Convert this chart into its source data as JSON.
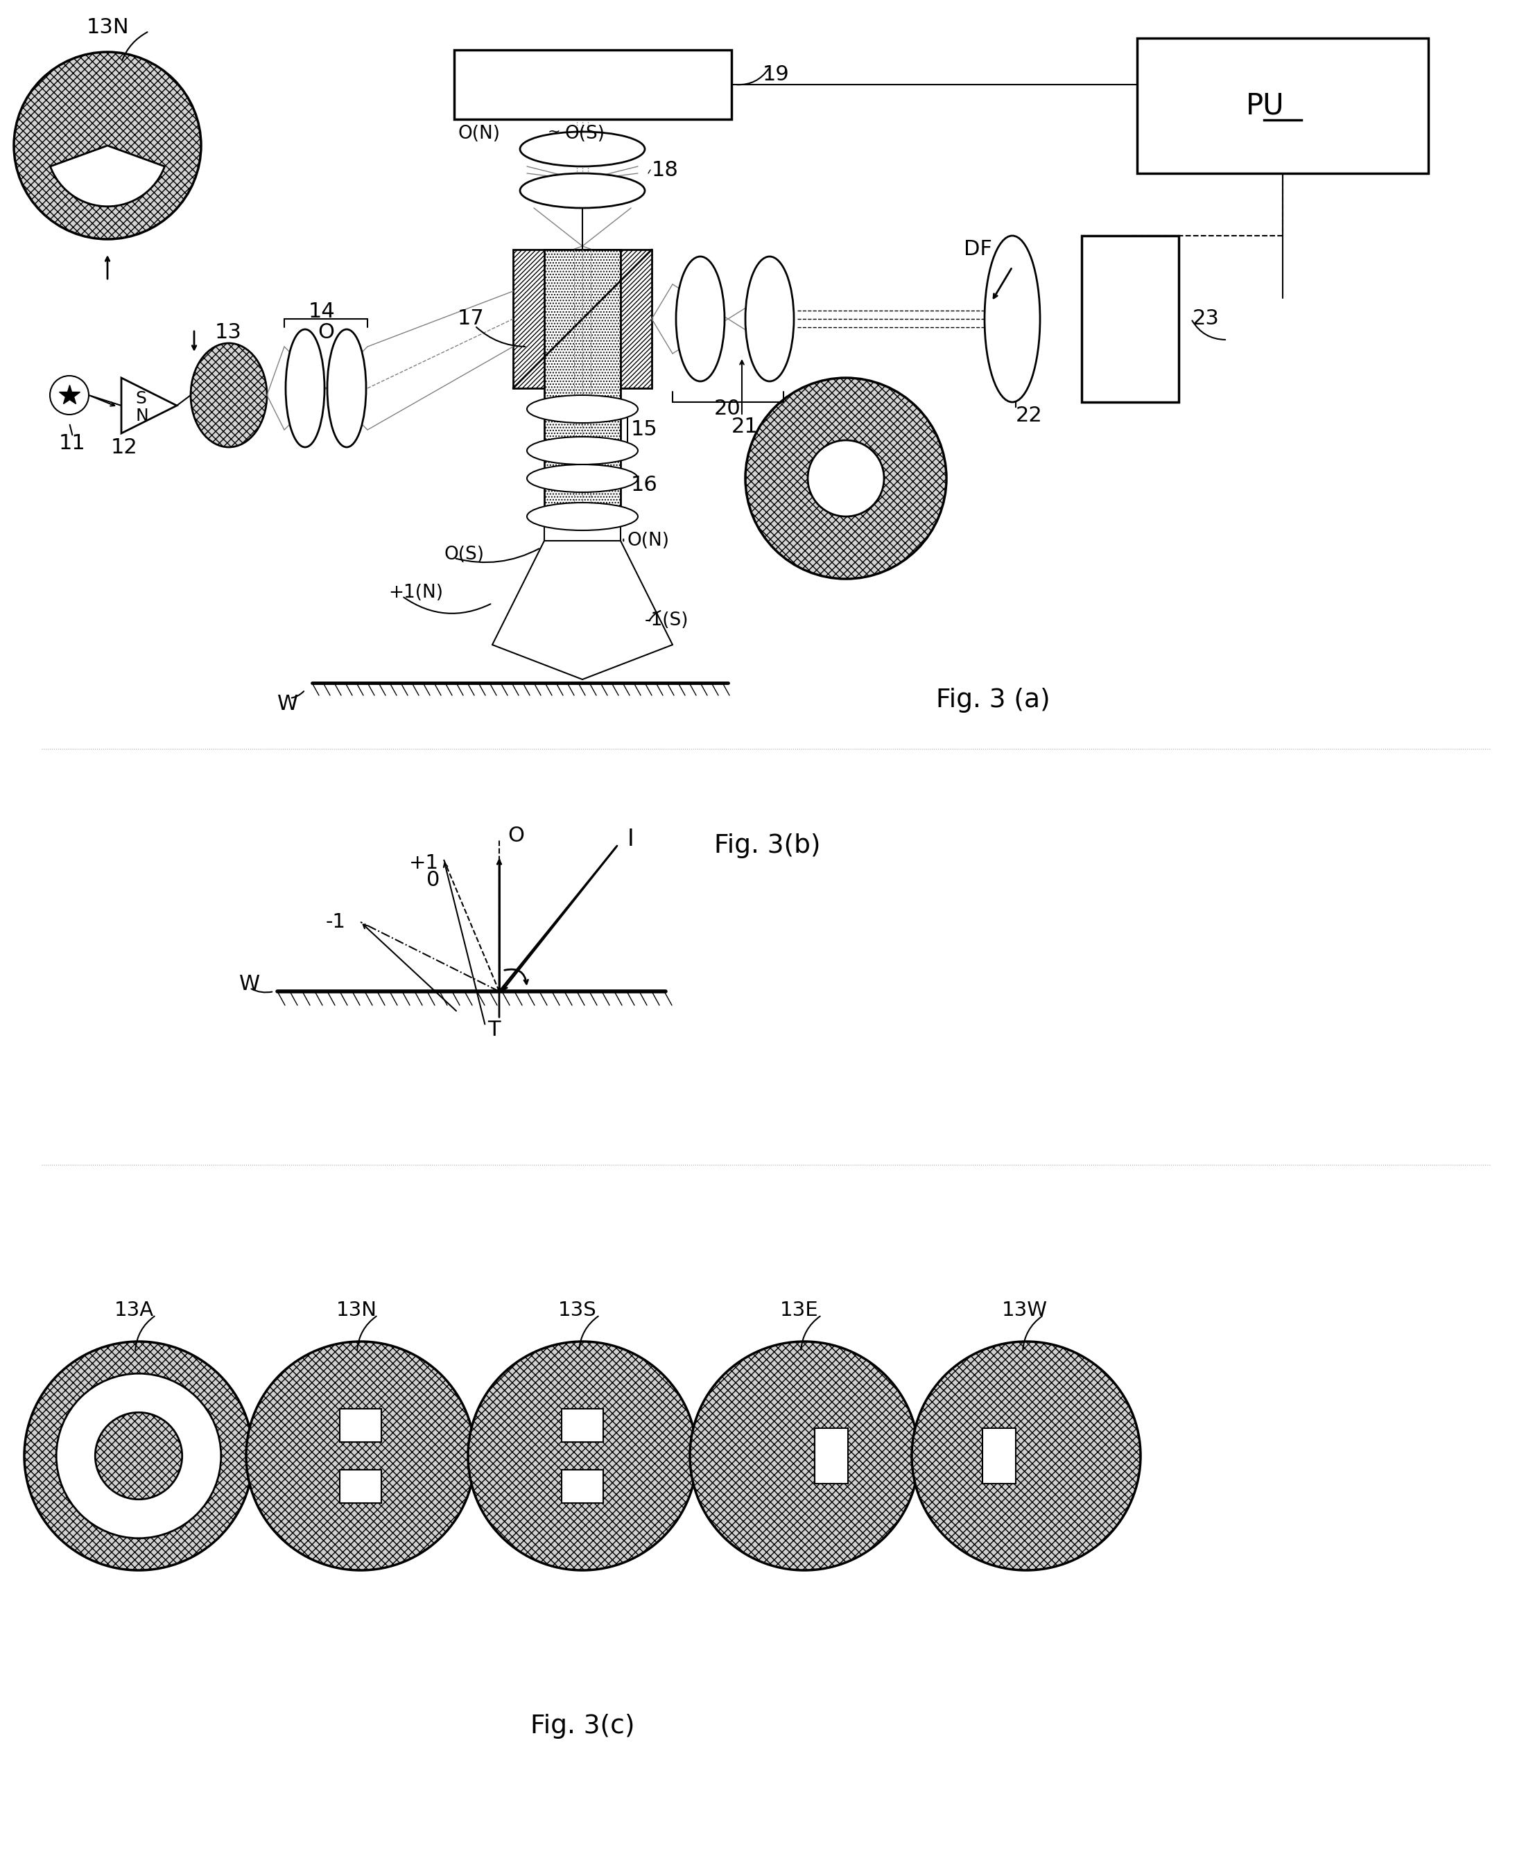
{
  "background_color": "#ffffff",
  "fig3a_label": "Fig. 3 (a)",
  "fig3b_label": "Fig. 3(b)",
  "fig3c_label": "Fig. 3(c)",
  "pu_label": "PU",
  "section_dividers": [
    1080,
    1680
  ]
}
